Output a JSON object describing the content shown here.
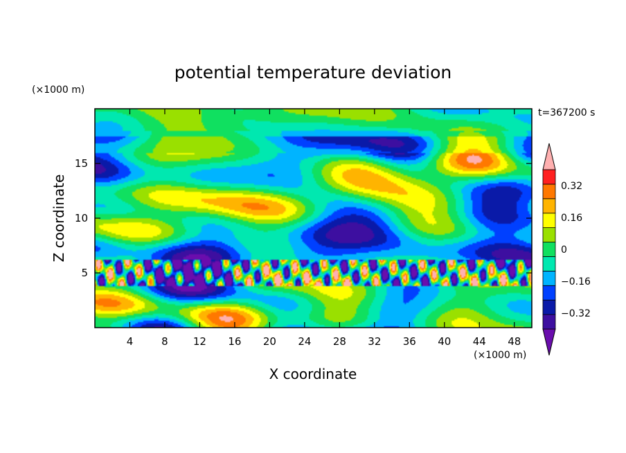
{
  "chart_data": {
    "type": "heatmap",
    "title": "potential temperature deviation",
    "xlabel": "X coordinate",
    "ylabel": "Z coordinate",
    "x_unit": "(×1000 m)",
    "y_unit": "(×1000 m)",
    "time_label": "t=367200 s",
    "xlim": [
      0,
      50
    ],
    "ylim": [
      0,
      20
    ],
    "x_ticks": [
      "4",
      "8",
      "12",
      "16",
      "20",
      "24",
      "28",
      "32",
      "36",
      "40",
      "44",
      "48"
    ],
    "y_ticks": [
      "5",
      "10",
      "15"
    ],
    "x_tick_values": [
      4,
      8,
      12,
      16,
      20,
      24,
      28,
      32,
      36,
      40,
      44,
      48
    ],
    "y_tick_values": [
      5,
      10,
      15
    ],
    "colorbar": {
      "levels": [
        -0.48,
        -0.4,
        -0.32,
        -0.24,
        -0.16,
        -0.08,
        0,
        0.08,
        0.16,
        0.24,
        0.32,
        0.4,
        0.48
      ],
      "tick_labels": [
        "0.32",
        "0.16",
        "0",
        "−0.16",
        "−0.32"
      ],
      "tick_values": [
        0.32,
        0.16,
        0,
        -0.16,
        -0.32
      ],
      "colors": [
        "#6a0dad",
        "#3d0fa0",
        "#0a1aa8",
        "#0040ff",
        "#00b4ff",
        "#00e8b0",
        "#10e060",
        "#9ae000",
        "#ffff00",
        "#ffb400",
        "#ff7800",
        "#ff2020",
        "#ffb0b0"
      ]
    }
  }
}
